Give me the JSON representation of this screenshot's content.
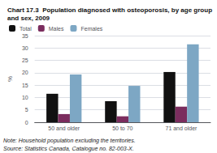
{
  "chart_data": {
    "type": "bar",
    "title": "Chart 17.3  Population diagnosed with osteoporosis, by age group and sex, 2009",
    "ylabel": "%",
    "categories": [
      "50 and older",
      "50 to 70",
      "71 and older"
    ],
    "series": [
      {
        "name": "Total",
        "color": "#111111",
        "values": [
          11.5,
          8.5,
          20.3
        ]
      },
      {
        "name": "Males",
        "color": "#7b2d5e",
        "values": [
          3.3,
          2.4,
          6.3
        ]
      },
      {
        "name": "Females",
        "color": "#7da7c4",
        "values": [
          19.3,
          14.7,
          31.5
        ]
      }
    ],
    "ylim": [
      0,
      35
    ],
    "yticks": [
      0,
      5,
      10,
      15,
      20,
      25,
      30,
      35
    ],
    "grid": true,
    "legend": "top-left",
    "annotations": [
      "Note: Household population excluding the territories.",
      "Source: Statistics Canada, Catalogue no. 82-003-X."
    ]
  }
}
